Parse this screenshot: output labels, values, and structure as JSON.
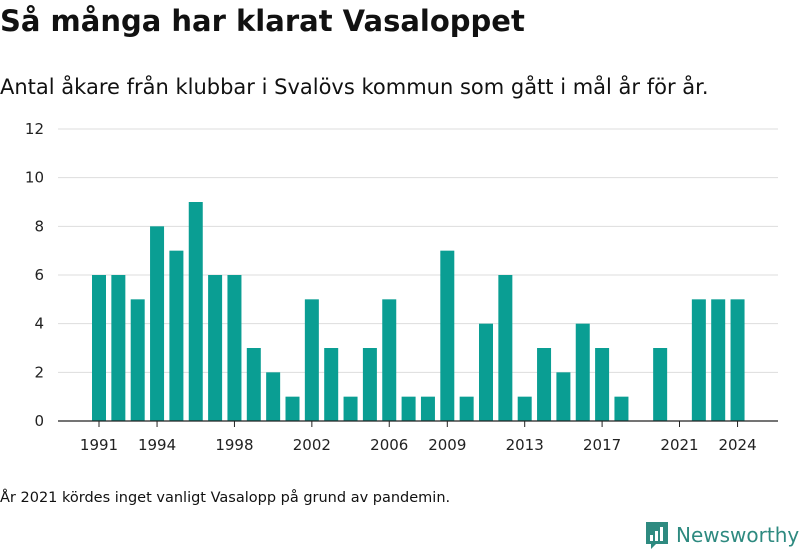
{
  "title": "Så många har klarat Vasaloppet",
  "subtitle": "Antal åkare från klubbar i Svalövs kommun som gått i mål år för år.",
  "footnote": "År 2021 kördes inget vanligt Vasalopp på grund av pandemin.",
  "brand": {
    "name": "Newsworthy",
    "icon": "newsworthy-logo-icon",
    "color": "#2e8a80"
  },
  "colors": {
    "bar": "#0a9e93",
    "grid": "#dddddd",
    "axis": "#222222",
    "text": "#222222"
  },
  "chart_data": {
    "type": "bar",
    "title": "",
    "xlabel": "",
    "ylabel": "",
    "ylim": [
      0,
      12
    ],
    "yticks": [
      0,
      2,
      4,
      6,
      8,
      10,
      12
    ],
    "xticks": [
      1991,
      1994,
      1998,
      2002,
      2006,
      2009,
      2013,
      2017,
      2021,
      2024
    ],
    "grid": true,
    "legend": "none",
    "categories": [
      1991,
      1992,
      1993,
      1994,
      1995,
      1996,
      1997,
      1998,
      1999,
      2000,
      2001,
      2002,
      2003,
      2004,
      2005,
      2006,
      2007,
      2008,
      2009,
      2010,
      2011,
      2012,
      2013,
      2014,
      2015,
      2016,
      2017,
      2018,
      2019,
      2020,
      2021,
      2022,
      2023,
      2024
    ],
    "values": [
      6,
      6,
      5,
      8,
      7,
      9,
      6,
      6,
      3,
      2,
      1,
      5,
      3,
      1,
      3,
      5,
      1,
      1,
      7,
      1,
      4,
      6,
      1,
      3,
      2,
      4,
      3,
      1,
      0,
      3,
      0,
      5,
      5,
      5
    ]
  }
}
